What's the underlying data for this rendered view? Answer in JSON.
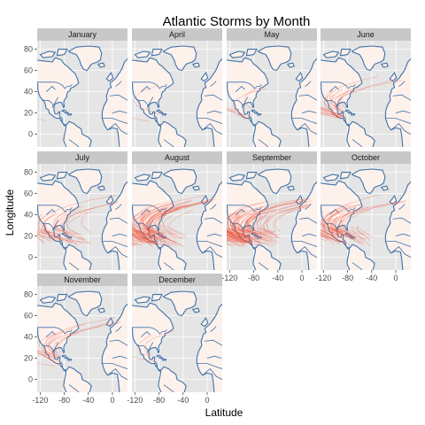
{
  "chart_data": {
    "type": "map-facets",
    "title": "Atlantic Storms by Month",
    "xlabel": "Latitude",
    "ylabel": "Longitude",
    "xlim": [
      -125,
      25
    ],
    "ylim": [
      -12,
      88
    ],
    "x_ticks": [
      -120,
      -80,
      -40,
      0
    ],
    "y_ticks": [
      0,
      20,
      40,
      60,
      80
    ],
    "x_tick_labels": [
      "-120",
      "-80",
      "-40",
      "0"
    ],
    "y_tick_labels": [
      "0",
      "20",
      "40",
      "60",
      "80"
    ],
    "facet_layout": {
      "cols": 4,
      "rows": 3
    },
    "grid": true,
    "colors": {
      "panel_bg": "#e5e5e5",
      "grid": "#ffffff",
      "land": "#fdf1ec",
      "coast": "#3f72a8",
      "track": "#f2533b",
      "strip_bg": "#c8c8c8"
    },
    "facets": [
      {
        "month": "January",
        "tracks": 1
      },
      {
        "month": "April",
        "tracks": 2
      },
      {
        "month": "May",
        "tracks": 6
      },
      {
        "month": "June",
        "tracks": 22
      },
      {
        "month": "July",
        "tracks": 36
      },
      {
        "month": "August",
        "tracks": 95
      },
      {
        "month": "September",
        "tracks": 120
      },
      {
        "month": "October",
        "tracks": 60
      },
      {
        "month": "November",
        "tracks": 18
      },
      {
        "month": "December",
        "tracks": 3
      }
    ]
  }
}
